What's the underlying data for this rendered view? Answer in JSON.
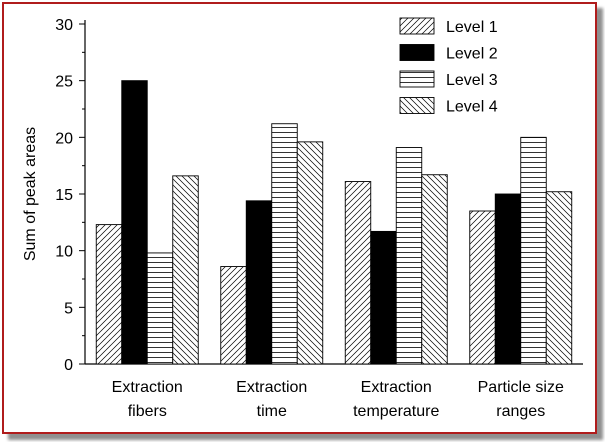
{
  "chart_data": {
    "type": "bar",
    "title": "",
    "xlabel": "",
    "ylabel": "Sum of peak areas",
    "ylim": [
      0,
      30
    ],
    "yticks": [
      0,
      5,
      10,
      15,
      20,
      25,
      30
    ],
    "grid": false,
    "legend_position": "top-right",
    "categories": [
      [
        "Extraction",
        "fibers"
      ],
      [
        "Extraction",
        "time"
      ],
      [
        "Extraction",
        "temperature"
      ],
      [
        "Particle size",
        "ranges"
      ]
    ],
    "series": [
      {
        "name": "Level 1",
        "pattern": "diagonal-up",
        "values": [
          12.3,
          8.6,
          16.1,
          13.5
        ]
      },
      {
        "name": "Level 2",
        "pattern": "solid-black",
        "values": [
          25.0,
          14.4,
          11.7,
          15.0
        ]
      },
      {
        "name": "Level 3",
        "pattern": "horizontal",
        "values": [
          9.8,
          21.2,
          19.1,
          20.0
        ]
      },
      {
        "name": "Level 4",
        "pattern": "diagonal-down",
        "values": [
          16.6,
          19.6,
          16.7,
          15.2
        ]
      }
    ]
  },
  "colors": {
    "frame_border": "#b01c1c",
    "bar_stroke": "#000000"
  }
}
